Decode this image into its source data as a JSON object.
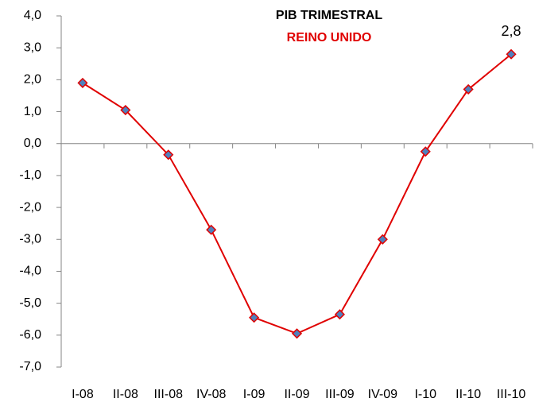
{
  "chart_data": {
    "type": "line",
    "title": "PIB TRIMESTRAL",
    "subtitle": "REINO UNIDO",
    "categories": [
      "I-08",
      "II-08",
      "III-08",
      "IV-08",
      "I-09",
      "II-09",
      "III-09",
      "IV-09",
      "I-10",
      "II-10",
      "III-10"
    ],
    "series": [
      {
        "color": "#e00000",
        "marker_color": "#4f81bd",
        "values": [
          1.9,
          1.05,
          -0.35,
          -2.7,
          -5.45,
          -5.95,
          -5.35,
          -3.0,
          -0.25,
          1.7,
          2.8
        ],
        "value_labels": [
          null,
          null,
          null,
          null,
          null,
          null,
          null,
          null,
          null,
          null,
          "2,8"
        ]
      }
    ],
    "ylim": [
      -7,
      4
    ],
    "yticks": [
      {
        "value": 4,
        "label": "4,0"
      },
      {
        "value": 3,
        "label": "3,0"
      },
      {
        "value": 2,
        "label": "2,0"
      },
      {
        "value": 1,
        "label": "1,0"
      },
      {
        "value": 0,
        "label": "0,0"
      },
      {
        "value": -1,
        "label": "-1,0"
      },
      {
        "value": -2,
        "label": "-2,0"
      },
      {
        "value": -3,
        "label": "-3,0"
      },
      {
        "value": -4,
        "label": "-4,0"
      },
      {
        "value": -5,
        "label": "-5,0"
      },
      {
        "value": -6,
        "label": "-6,0"
      },
      {
        "value": -7,
        "label": "-7,0"
      }
    ],
    "grid": false
  }
}
